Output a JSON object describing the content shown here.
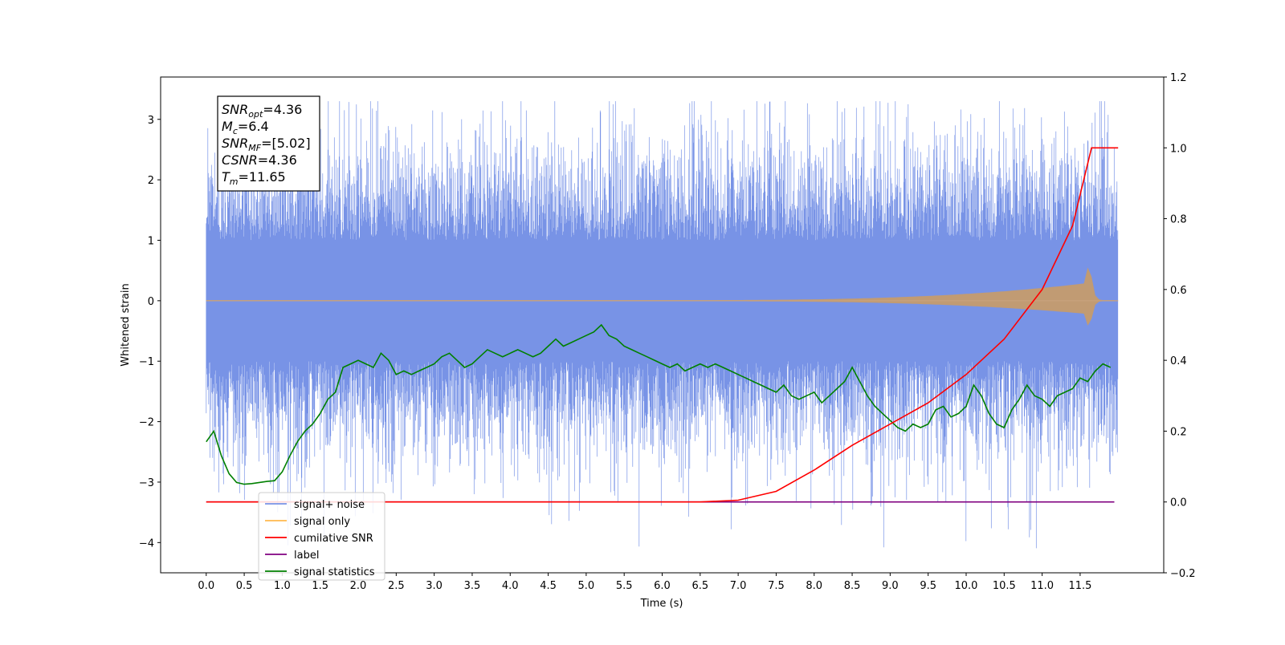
{
  "chart_data": {
    "type": "line",
    "xlabel": "Time (s)",
    "ylabel": "Whitened strain",
    "xlim": [
      -0.6,
      12.6
    ],
    "ylim": [
      -4.5,
      3.7
    ],
    "ylim_right": [
      -0.2,
      1.2
    ],
    "x_ticks": [
      "0.0",
      "0.5",
      "1.0",
      "1.5",
      "2.0",
      "2.5",
      "3.0",
      "3.5",
      "4.0",
      "4.5",
      "5.0",
      "5.5",
      "6.0",
      "6.5",
      "7.0",
      "7.5",
      "8.0",
      "8.5",
      "9.0",
      "9.5",
      "10.0",
      "10.5",
      "11.0",
      "11.5"
    ],
    "y_ticks_left": [
      "−4",
      "−3",
      "−2",
      "−1",
      "0",
      "1",
      "2",
      "3"
    ],
    "y_ticks_right": [
      "−0.2",
      "0.0",
      "0.2",
      "0.4",
      "0.6",
      "0.8",
      "1.0",
      "1.2"
    ],
    "annotation": [
      {
        "main": "SNR",
        "sub": "opt",
        "value": "=4.36"
      },
      {
        "main": "M",
        "sub": "c",
        "value": "=6.4"
      },
      {
        "main": "SNR",
        "sub": "MF",
        "value": "=[5.02]"
      },
      {
        "main": "CSNR",
        "sub": "",
        "value": "=4.36"
      },
      {
        "main": "T",
        "sub": "m",
        "value": "=11.65"
      }
    ],
    "legend_position": "lower-left",
    "series": [
      {
        "name": "signal+ noise",
        "color": "#7893e6",
        "axis": "left",
        "description_range": [
          -2.5,
          2.5
        ]
      },
      {
        "name": "signal only",
        "color": "#ffb84d",
        "axis": "left"
      },
      {
        "name": "cumilative SNR",
        "color": "#ff0000",
        "axis": "right",
        "x": [
          0,
          6.5,
          7.0,
          7.5,
          8.0,
          8.5,
          9.0,
          9.5,
          10.0,
          10.5,
          11.0,
          11.4,
          11.65,
          12.0
        ],
        "values": [
          0.0,
          0.0,
          0.005,
          0.03,
          0.09,
          0.16,
          0.22,
          0.28,
          0.36,
          0.46,
          0.6,
          0.78,
          1.0,
          1.0
        ]
      },
      {
        "name": "label",
        "color": "#800080",
        "axis": "right",
        "x": [
          0,
          11.95
        ],
        "values": [
          0.0,
          0.0
        ]
      },
      {
        "name": "signal statistics",
        "color": "#008000",
        "axis": "right",
        "x": [
          0.0,
          0.1,
          0.2,
          0.3,
          0.4,
          0.5,
          0.6,
          0.7,
          0.8,
          0.9,
          1.0,
          1.1,
          1.2,
          1.3,
          1.4,
          1.5,
          1.6,
          1.7,
          1.8,
          1.9,
          2.0,
          2.1,
          2.2,
          2.3,
          2.4,
          2.5,
          2.6,
          2.7,
          2.8,
          2.9,
          3.0,
          3.1,
          3.2,
          3.3,
          3.4,
          3.5,
          3.6,
          3.7,
          3.8,
          3.9,
          4.0,
          4.1,
          4.2,
          4.3,
          4.4,
          4.5,
          4.6,
          4.7,
          4.8,
          4.9,
          5.0,
          5.1,
          5.2,
          5.3,
          5.4,
          5.5,
          5.6,
          5.7,
          5.8,
          5.9,
          6.0,
          6.1,
          6.2,
          6.3,
          6.4,
          6.5,
          6.6,
          6.7,
          6.8,
          6.9,
          7.0,
          7.1,
          7.2,
          7.3,
          7.4,
          7.5,
          7.6,
          7.7,
          7.8,
          7.9,
          8.0,
          8.1,
          8.2,
          8.3,
          8.4,
          8.5,
          8.6,
          8.7,
          8.8,
          8.9,
          9.0,
          9.1,
          9.2,
          9.3,
          9.4,
          9.5,
          9.6,
          9.7,
          9.8,
          9.9,
          10.0,
          10.1,
          10.2,
          10.3,
          10.4,
          10.5,
          10.6,
          10.7,
          10.8,
          10.9,
          11.0,
          11.1,
          11.2,
          11.3,
          11.4,
          11.5,
          11.6,
          11.7,
          11.8,
          11.9
        ],
        "values": [
          0.17,
          0.2,
          0.13,
          0.08,
          0.055,
          0.05,
          0.052,
          0.055,
          0.058,
          0.06,
          0.085,
          0.13,
          0.17,
          0.2,
          0.22,
          0.25,
          0.29,
          0.31,
          0.38,
          0.39,
          0.4,
          0.39,
          0.38,
          0.42,
          0.4,
          0.36,
          0.37,
          0.36,
          0.37,
          0.38,
          0.39,
          0.41,
          0.42,
          0.4,
          0.38,
          0.39,
          0.41,
          0.43,
          0.42,
          0.41,
          0.42,
          0.43,
          0.42,
          0.41,
          0.42,
          0.44,
          0.46,
          0.44,
          0.45,
          0.46,
          0.47,
          0.48,
          0.5,
          0.47,
          0.46,
          0.44,
          0.43,
          0.42,
          0.41,
          0.4,
          0.39,
          0.38,
          0.39,
          0.37,
          0.38,
          0.39,
          0.38,
          0.39,
          0.38,
          0.37,
          0.36,
          0.35,
          0.34,
          0.33,
          0.32,
          0.31,
          0.33,
          0.3,
          0.29,
          0.3,
          0.31,
          0.28,
          0.3,
          0.32,
          0.34,
          0.38,
          0.34,
          0.3,
          0.27,
          0.25,
          0.23,
          0.21,
          0.2,
          0.22,
          0.21,
          0.22,
          0.26,
          0.27,
          0.24,
          0.25,
          0.27,
          0.33,
          0.3,
          0.25,
          0.22,
          0.21,
          0.26,
          0.29,
          0.33,
          0.3,
          0.29,
          0.27,
          0.3,
          0.31,
          0.32,
          0.35,
          0.34,
          0.37,
          0.39,
          0.38
        ]
      }
    ]
  }
}
